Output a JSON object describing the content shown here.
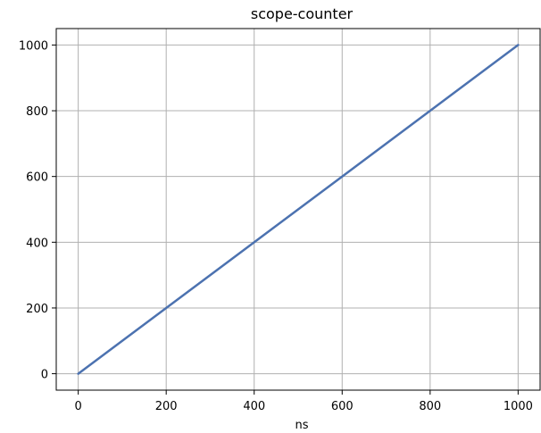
{
  "chart_data": {
    "type": "line",
    "title": "scope-counter",
    "xlabel": "ns",
    "ylabel": "",
    "xlim": [
      -50,
      1050
    ],
    "ylim": [
      -50,
      1050
    ],
    "xticks": [
      0,
      200,
      400,
      600,
      800,
      1000
    ],
    "yticks": [
      0,
      200,
      400,
      600,
      800,
      1000
    ],
    "grid": true,
    "series": [
      {
        "x": [
          0,
          1000
        ],
        "y": [
          0,
          1000
        ],
        "color": "#4c72b0"
      }
    ]
  },
  "colors": {
    "grid": "#b0b0b0",
    "axes": "#000000"
  }
}
